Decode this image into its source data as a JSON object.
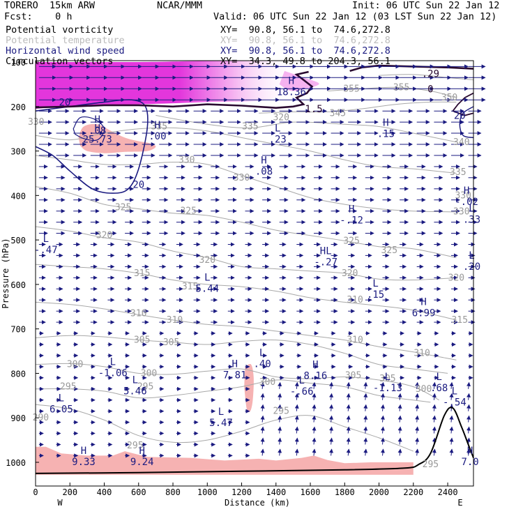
{
  "header": {
    "model": "TORERO  15km ARW",
    "center": "NCAR/MMM",
    "init": "Init: 06 UTC Sun 22 Jan 12",
    "fcst": "Fcst:    0 h",
    "valid": "Valid: 06 UTC Sun 22 Jan 12 (03 LST Sun 22 Jan 12)"
  },
  "legend": [
    {
      "name": "Potential vorticity",
      "xy": "XY=  90.8, 56.1 to  74.6,272.8",
      "color": "#000000"
    },
    {
      "name": "Potential temperature",
      "xy": "XY=  90.8, 56.1 to  74.6,272.8",
      "color": "#bbbbbb"
    },
    {
      "name": "Horizontal wind speed",
      "xy": "XY=  90.8, 56.1 to  74.6,272.8",
      "color": "#1a1a80"
    },
    {
      "name": "Circulation vectors",
      "xy": "XY=  34.3, 49.8 to 204.3, 56.1",
      "color": "#000000"
    }
  ],
  "chart_data": {
    "type": "cross-section",
    "xlabel": "Distance (km)",
    "ylabel": "Pressure (hPa)",
    "xlim": [
      0,
      2550
    ],
    "ylim": [
      1025,
      100
    ],
    "x_ticks": [
      "0",
      "200",
      "400",
      "600",
      "800",
      "1000",
      "1200",
      "1400",
      "1600",
      "1800",
      "2000",
      "2200",
      "2400"
    ],
    "y_ticks": [
      "1000",
      "900",
      "800",
      "700",
      "600",
      "500",
      "400",
      "300",
      "200",
      "100"
    ],
    "x_end_labels": [
      "W",
      "E"
    ],
    "colors": {
      "theta": "#a8a8a8",
      "wind": "#1a1a80",
      "pv": "#2a0a30",
      "pv_fill_high": "#e020d8",
      "shade_low": "#f6b2b2",
      "vectors": "#1a1a80",
      "terrain": "#000000"
    },
    "theta_labels": [
      {
        "text": "300",
        "x": 1350,
        "p": 820
      },
      {
        "text": "295",
        "x": 190,
        "p": 830
      },
      {
        "text": "295",
        "x": 640,
        "p": 830
      },
      {
        "text": "290",
        "x": 30,
        "p": 900
      },
      {
        "text": "300",
        "x": 660,
        "p": 800
      },
      {
        "text": "300",
        "x": 230,
        "p": 780
      },
      {
        "text": "305",
        "x": 620,
        "p": 725
      },
      {
        "text": "305",
        "x": 790,
        "p": 730
      },
      {
        "text": "305",
        "x": 1850,
        "p": 805
      },
      {
        "text": "305",
        "x": 2050,
        "p": 812
      },
      {
        "text": "300",
        "x": 2260,
        "p": 835
      },
      {
        "text": "295",
        "x": 1430,
        "p": 885
      },
      {
        "text": "295",
        "x": 2300,
        "p": 1005
      },
      {
        "text": "295",
        "x": 580,
        "p": 962
      },
      {
        "text": "310",
        "x": 600,
        "p": 665
      },
      {
        "text": "310",
        "x": 810,
        "p": 680
      },
      {
        "text": "310",
        "x": 1860,
        "p": 725
      },
      {
        "text": "310",
        "x": 2250,
        "p": 755
      },
      {
        "text": "310",
        "x": 1860,
        "p": 635
      },
      {
        "text": "315",
        "x": 2470,
        "p": 680
      },
      {
        "text": "315",
        "x": 620,
        "p": 575
      },
      {
        "text": "315",
        "x": 900,
        "p": 605
      },
      {
        "text": "320",
        "x": 2450,
        "p": 585
      },
      {
        "text": "320",
        "x": 1830,
        "p": 575
      },
      {
        "text": "320",
        "x": 400,
        "p": 490
      },
      {
        "text": "320",
        "x": 1000,
        "p": 545
      },
      {
        "text": "325",
        "x": 510,
        "p": 427
      },
      {
        "text": "325",
        "x": 890,
        "p": 435
      },
      {
        "text": "325",
        "x": 1840,
        "p": 502
      },
      {
        "text": "325",
        "x": 2060,
        "p": 523
      },
      {
        "text": "330",
        "x": 880,
        "p": 320
      },
      {
        "text": "330",
        "x": 1200,
        "p": 360
      },
      {
        "text": "330",
        "x": 2480,
        "p": 436
      },
      {
        "text": "330",
        "x": 2490,
        "p": 400
      },
      {
        "text": "335",
        "x": 1250,
        "p": 245
      },
      {
        "text": "335",
        "x": 2460,
        "p": 348
      },
      {
        "text": "335",
        "x": 720,
        "p": 245
      },
      {
        "text": "340",
        "x": 2480,
        "p": 280
      },
      {
        "text": "345",
        "x": 1760,
        "p": 215
      },
      {
        "text": "350",
        "x": 2410,
        "p": 180
      },
      {
        "text": "355",
        "x": 1840,
        "p": 160
      },
      {
        "text": "355",
        "x": 2130,
        "p": 157
      },
      {
        "text": "320",
        "x": 1430,
        "p": 225
      },
      {
        "text": "330",
        "x": 3,
        "p": 235
      }
    ],
    "wind_labels": [
      {
        "text": "20",
        "x": 600,
        "p": 375
      },
      {
        "text": "20",
        "x": 170,
        "p": 190
      },
      {
        "text": "20",
        "x": 2470,
        "p": 220
      }
    ],
    "pv_labels": [
      {
        "text": "1.5",
        "x": 1620,
        "p": 205
      },
      {
        "text": ".29",
        "x": 2300,
        "p": 126
      },
      {
        "text": "0",
        "x": 2300,
        "p": 160
      }
    ],
    "extrema": [
      {
        "kind": "H",
        "value": "18.36",
        "x": 1490,
        "p": 168
      },
      {
        "kind": "H",
        "value": "25.73",
        "x": 360,
        "p": 275
      },
      {
        "kind": "H",
        "value": ".08",
        "x": 360,
        "p": 255
      },
      {
        "kind": "H",
        "value": ".00",
        "x": 710,
        "p": 268
      },
      {
        "kind": "L",
        "value": ".23",
        "x": 1410,
        "p": 275
      },
      {
        "kind": "H",
        "value": ".08",
        "x": 1330,
        "p": 347
      },
      {
        "kind": "H",
        "value": ".15",
        "x": 2040,
        "p": 262
      },
      {
        "kind": "H",
        "value": "-.12",
        "x": 1840,
        "p": 457
      },
      {
        "kind": "H",
        "value": "-.02",
        "x": 2510,
        "p": 415
      },
      {
        "kind": "L",
        "value": ".33",
        "x": 2540,
        "p": 455
      },
      {
        "kind": "L",
        "value": "-.47",
        "x": 60,
        "p": 523
      },
      {
        "kind": "HL",
        "value": "-.27",
        "x": 1690,
        "p": 551
      },
      {
        "kind": "L",
        "value": ".20",
        "x": 2540,
        "p": 561
      },
      {
        "kind": "L",
        "value": "5.44",
        "x": 1000,
        "p": 610
      },
      {
        "kind": "L",
        "value": ".15",
        "x": 1980,
        "p": 624
      },
      {
        "kind": "H",
        "value": "6.99",
        "x": 2260,
        "p": 665
      },
      {
        "kind": "L",
        "value": "-1.06",
        "x": 450,
        "p": 800
      },
      {
        "kind": "L",
        "value": "5.46",
        "x": 580,
        "p": 841
      },
      {
        "kind": "H",
        "value": "7.81",
        "x": 1160,
        "p": 805
      },
      {
        "kind": "L",
        "value": ".40",
        "x": 1320,
        "p": 780
      },
      {
        "kind": "H",
        "value": "8.16",
        "x": 1630,
        "p": 806
      },
      {
        "kind": "L",
        "value": "-.66",
        "x": 1550,
        "p": 842
      },
      {
        "kind": "L",
        "value": "-1.13",
        "x": 2050,
        "p": 834
      },
      {
        "kind": "L",
        "value": ".68",
        "x": 2350,
        "p": 834
      },
      {
        "kind": "L",
        "value": "-.54",
        "x": 2440,
        "p": 866
      },
      {
        "kind": "L",
        "value": "6.05",
        "x": 150,
        "p": 882
      },
      {
        "kind": "L",
        "value": "5.47",
        "x": 1080,
        "p": 912
      },
      {
        "kind": "H",
        "value": "9.33",
        "x": 280,
        "p": 1000
      },
      {
        "kind": "H",
        "value": "9.24",
        "x": 620,
        "p": 1000
      },
      {
        "kind": "H",
        "value": "7.0",
        "x": 2530,
        "p": 1000
      }
    ]
  }
}
